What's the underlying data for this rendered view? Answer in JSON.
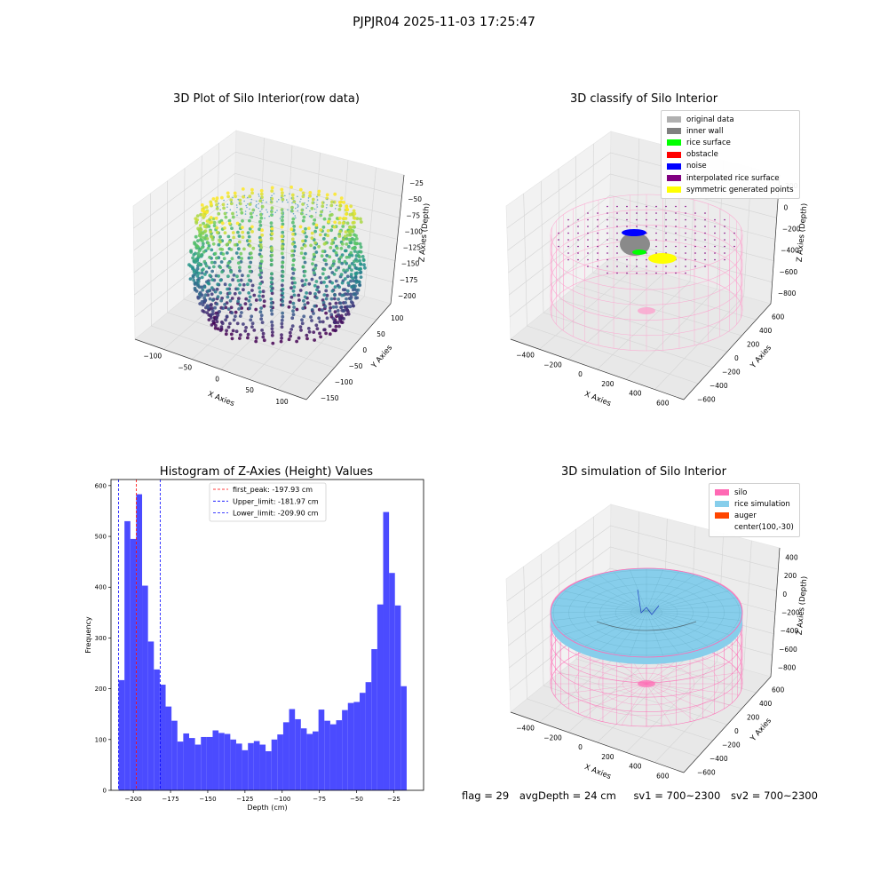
{
  "suptitle": "PJPJR04 2025-11-03 17:25:47",
  "chart_data": [
    {
      "type": "scatter",
      "title": "3D Plot of Silo Interior(row data)",
      "xlabel": "X Axies",
      "ylabel": "Y Axies",
      "zlabel": "Z Axies (Depth)",
      "x_ticks": [
        "−100",
        "−50",
        "0",
        "50",
        "100"
      ],
      "y_ticks": [
        "−150",
        "−100",
        "−50",
        "0",
        "50",
        "100"
      ],
      "z_ticks": [
        "−25",
        "−50",
        "−75",
        "−100",
        "−125",
        "−150",
        "−175",
        "−200"
      ],
      "colormap": "viridis"
    },
    {
      "type": "scatter",
      "title": "3D classify of Silo Interior",
      "xlabel": "X Axies",
      "ylabel": "Y Axies",
      "zlabel": "Z Axies (Depth)",
      "x_ticks": [
        "−400",
        "−200",
        "0",
        "200",
        "400",
        "600"
      ],
      "y_ticks": [
        "−600",
        "−400",
        "−200",
        "0",
        "200",
        "400",
        "600"
      ],
      "z_ticks": [
        "200",
        "0",
        "−200",
        "−400",
        "−600",
        "−800"
      ],
      "legend": [
        {
          "label": "original data",
          "color": "#b0b0b0"
        },
        {
          "label": "inner wall",
          "color": "#808080"
        },
        {
          "label": "rice surface",
          "color": "#00ff00"
        },
        {
          "label": "obstacle",
          "color": "#ff0000"
        },
        {
          "label": "noise",
          "color": "#0000ff"
        },
        {
          "label": "interpolated rice surface",
          "color": "#800080"
        },
        {
          "label": "symmetric generated points",
          "color": "#ffff00"
        }
      ]
    },
    {
      "type": "bar",
      "title": "Histogram of Z-Axies (Height) Values",
      "xlabel": "Depth (cm)",
      "ylabel": "Frequency",
      "xlim": [
        -215,
        -5
      ],
      "ylim": [
        0,
        612
      ],
      "x_ticks": [
        -200,
        -175,
        -150,
        -125,
        -100,
        -75,
        -50,
        -25
      ],
      "x_tick_labels": [
        "−200",
        "−175",
        "−150",
        "−125",
        "−100",
        "−75",
        "−50",
        "−25"
      ],
      "y_ticks": [
        0,
        100,
        200,
        300,
        400,
        500,
        600
      ],
      "bar_color": "#4b4bff",
      "bin_start": -209.9,
      "bin_width": 3.95,
      "values": [
        217,
        530,
        495,
        583,
        403,
        293,
        238,
        208,
        165,
        137,
        96,
        112,
        103,
        90,
        105,
        105,
        118,
        113,
        111,
        100,
        92,
        79,
        93,
        97,
        90,
        77,
        100,
        110,
        134,
        160,
        140,
        122,
        111,
        116,
        159,
        137,
        130,
        138,
        158,
        172,
        174,
        192,
        213,
        278,
        366,
        548,
        428,
        364,
        205
      ],
      "lines": [
        {
          "name": "first_peak: -197.93 cm",
          "x": -197.93,
          "color": "#ff0000"
        },
        {
          "name": "Upper_limit: -181.97 cm",
          "x": -181.97,
          "color": "#0000ff"
        },
        {
          "name": "Lower_limit: -209.90 cm",
          "x": -209.9,
          "color": "#0000ff"
        }
      ]
    },
    {
      "type": "scatter",
      "title": "3D simulation of Silo Interior",
      "xlabel": "X Axies",
      "ylabel": "Y Axies",
      "zlabel": "Z Axies (Depth)",
      "x_ticks": [
        "−400",
        "−200",
        "0",
        "200",
        "400",
        "600"
      ],
      "y_ticks": [
        "−600",
        "−400",
        "−200",
        "0",
        "200",
        "400",
        "600"
      ],
      "z_ticks": [
        "400",
        "200",
        "0",
        "−200",
        "−400",
        "−600",
        "−800"
      ],
      "legend": [
        {
          "label": "silo",
          "color": "#ff69b4"
        },
        {
          "label": "rice simulation",
          "color": "#87ceeb"
        },
        {
          "label": "auger",
          "color": "#ff4500"
        },
        {
          "label": "center(100,-30)",
          "color": ""
        }
      ]
    }
  ],
  "footer": {
    "flag": "flag = 29",
    "avg_depth": "avgDepth = 24 cm",
    "sv1": "sv1 = 700~2300",
    "sv2": "sv2 = 700~2300"
  }
}
